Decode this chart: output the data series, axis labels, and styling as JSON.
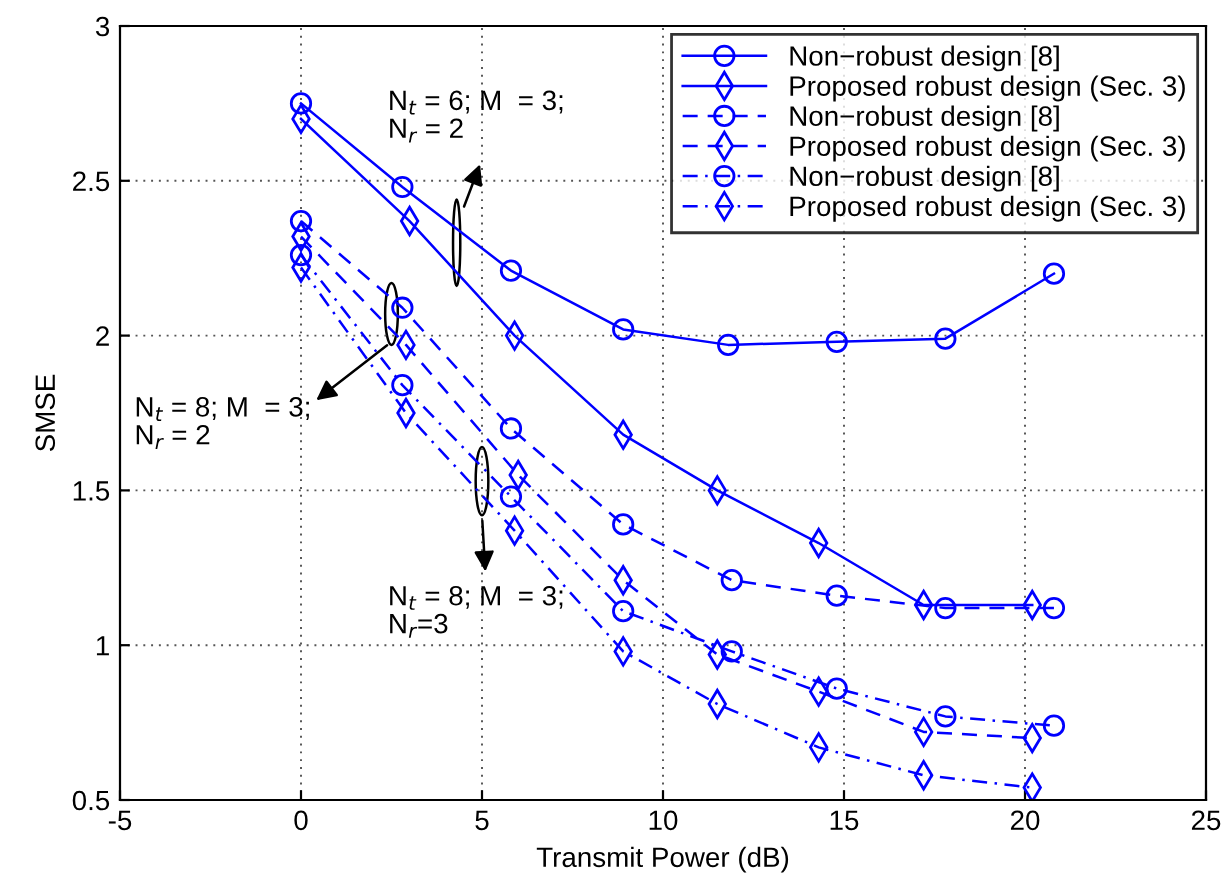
{
  "chart_data": {
    "type": "line",
    "xlabel": "Transmit Power (dB)",
    "ylabel": "SMSE",
    "xlim": [
      -5,
      25
    ],
    "ylim": [
      0.5,
      3
    ],
    "xticks": [
      -5,
      0,
      5,
      10,
      15,
      20,
      25
    ],
    "yticks": [
      0.5,
      1,
      1.5,
      2,
      2.5,
      3
    ],
    "grid": true,
    "legend": "top right",
    "annotations": [
      "N$_{t}$ = 6; M  = 3;\nN$_{r}$ = 2",
      "N$_{t}$ = 8; M  = 3;\nN$_{r}$ = 2",
      "N$_{t}$ = 8; M  = 3;\nN$_{r}$=3"
    ],
    "series": [
      {
        "name": "Non−robust design [8]",
        "color": "#0000ff",
        "marker": "circle",
        "line_style": "solid",
        "x": [
          0,
          2.8,
          5.8,
          8.9,
          11.8,
          14.8,
          17.8,
          20.8
        ],
        "values": [
          2.75,
          2.48,
          2.21,
          2.02,
          1.97,
          1.98,
          1.99,
          2.2
        ]
      },
      {
        "name": "Proposed robust design (Sec. 3)",
        "color": "#0000ff",
        "marker": "diamond",
        "line_style": "solid",
        "x": [
          0,
          3.0,
          5.9,
          8.9,
          11.5,
          14.3,
          17.2,
          20.2
        ],
        "values": [
          2.7,
          2.37,
          2.0,
          1.68,
          1.5,
          1.33,
          1.13,
          1.13
        ]
      },
      {
        "name": "Non−robust design [8]",
        "color": "#0000ff",
        "marker": "circle",
        "line_style": "dashed",
        "x": [
          0,
          2.8,
          5.8,
          8.9,
          11.9,
          14.8,
          17.8,
          20.8
        ],
        "values": [
          2.37,
          2.09,
          1.7,
          1.39,
          1.21,
          1.16,
          1.12,
          1.12
        ]
      },
      {
        "name": "Proposed robust design (Sec. 3)",
        "color": "#0000ff",
        "marker": "diamond",
        "line_style": "dashed",
        "x": [
          0,
          2.9,
          6.0,
          8.9,
          11.5,
          14.3,
          17.2,
          20.2
        ],
        "values": [
          2.32,
          1.97,
          1.55,
          1.21,
          0.97,
          0.85,
          0.72,
          0.7
        ]
      },
      {
        "name": "Non−robust design [8]",
        "color": "#0000ff",
        "marker": "circle",
        "line_style": "dashdot",
        "x": [
          0,
          2.8,
          5.8,
          8.9,
          11.9,
          14.8,
          17.8,
          20.8
        ],
        "values": [
          2.26,
          1.84,
          1.48,
          1.11,
          0.98,
          0.86,
          0.77,
          0.74
        ]
      },
      {
        "name": "Proposed robust design (Sec. 3)",
        "color": "#0000ff",
        "marker": "diamond",
        "line_style": "dashdot",
        "x": [
          0,
          2.9,
          5.9,
          8.9,
          11.5,
          14.3,
          17.2,
          20.2
        ],
        "values": [
          2.22,
          1.75,
          1.37,
          0.98,
          0.81,
          0.67,
          0.58,
          0.54
        ]
      }
    ]
  }
}
